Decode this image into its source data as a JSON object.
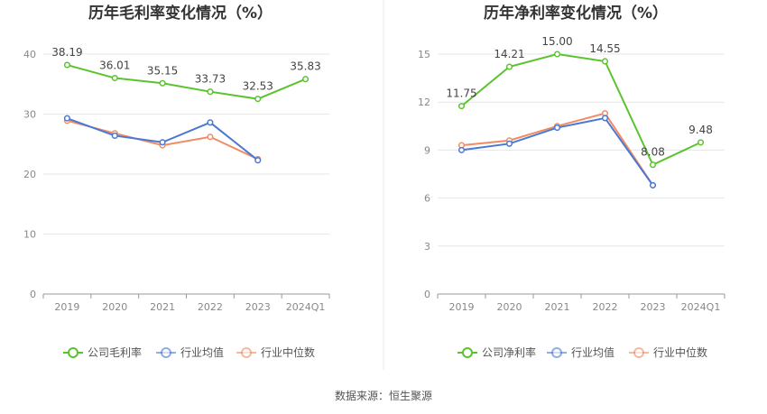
{
  "source_text": "数据来源：恒生聚源",
  "colors": {
    "company": "#5ac32e",
    "industry_avg": "#4a78d4",
    "industry_median": "#ef8c64"
  },
  "chart_data": [
    {
      "type": "line",
      "title": "历年毛利率变化情况（%）",
      "categories": [
        "2019",
        "2020",
        "2021",
        "2022",
        "2023",
        "2024Q1"
      ],
      "ylim": [
        0,
        40
      ],
      "yticks": [
        0,
        10,
        20,
        30,
        40
      ],
      "grid": true,
      "legend_position": "bottom",
      "series": [
        {
          "name": "公司毛利率",
          "key": "company",
          "values": [
            38.19,
            36.01,
            35.15,
            33.73,
            32.53,
            35.83
          ],
          "labels": [
            "38.19",
            "36.01",
            "35.15",
            "33.73",
            "32.53",
            "35.83"
          ]
        },
        {
          "name": "行业均值",
          "key": "industry_avg",
          "values": [
            29.3,
            26.4,
            25.3,
            28.6,
            22.3,
            null
          ]
        },
        {
          "name": "行业中位数",
          "key": "industry_median",
          "values": [
            28.9,
            26.8,
            24.8,
            26.2,
            22.5,
            null
          ]
        }
      ]
    },
    {
      "type": "line",
      "title": "历年净利率变化情况（%）",
      "categories": [
        "2019",
        "2020",
        "2021",
        "2022",
        "2023",
        "2024Q1"
      ],
      "ylim": [
        0,
        15
      ],
      "yticks": [
        0,
        3,
        6,
        9,
        12,
        15
      ],
      "grid": true,
      "legend_position": "bottom",
      "series": [
        {
          "name": "公司净利率",
          "key": "company",
          "values": [
            11.75,
            14.21,
            15.0,
            14.55,
            8.08,
            9.48
          ],
          "labels": [
            "11.75",
            "14.21",
            "15.00",
            "14.55",
            "8.08",
            "9.48"
          ]
        },
        {
          "name": "行业均值",
          "key": "industry_avg",
          "values": [
            9.0,
            9.4,
            10.4,
            11.0,
            6.8,
            null
          ]
        },
        {
          "name": "行业中位数",
          "key": "industry_median",
          "values": [
            9.3,
            9.6,
            10.5,
            11.3,
            6.8,
            null
          ]
        }
      ]
    }
  ]
}
